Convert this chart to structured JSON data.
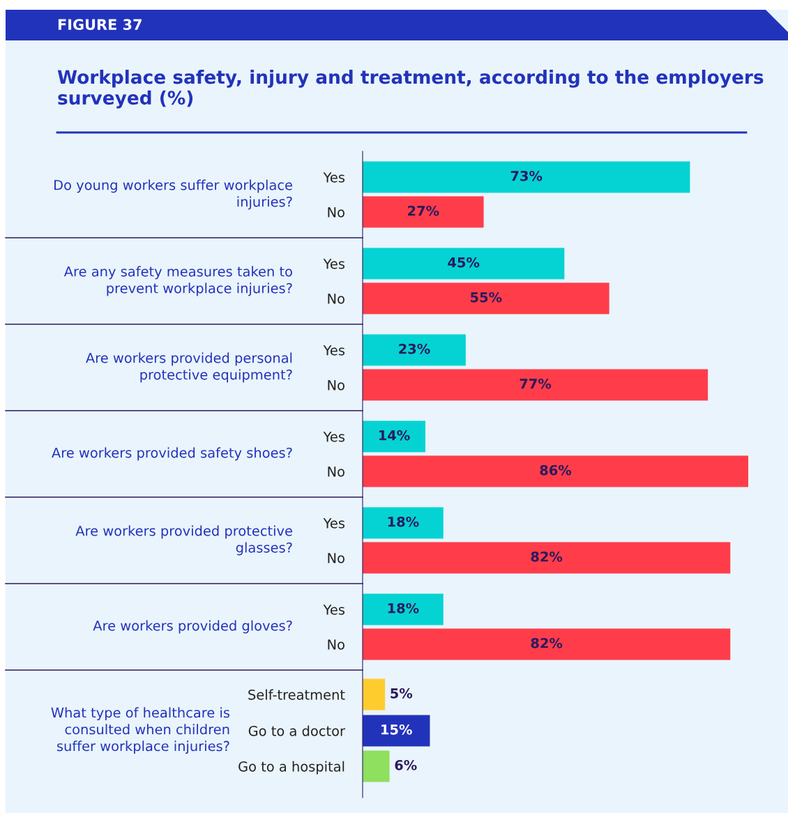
{
  "chart_data": {
    "type": "bar",
    "orientation": "horizontal",
    "subtitle": "FIGURE 37",
    "title": "Workplace safety, injury and treatment, according to the employers surveyed (%)",
    "categories": [
      "Yes",
      "No",
      "Yes",
      "No",
      "Yes",
      "No",
      "Yes",
      "No",
      "Yes",
      "No",
      "Yes",
      "No",
      "Self-treatment",
      "Go to a doctor",
      "Go to a hospital"
    ],
    "values": [
      73,
      27,
      45,
      55,
      23,
      77,
      14,
      86,
      18,
      82,
      18,
      82,
      5,
      15,
      6
    ],
    "value_labels": [
      "73%",
      "27%",
      "45%",
      "55%",
      "23%",
      "77%",
      "14%",
      "86%",
      "18%",
      "82%",
      "18%",
      "82%",
      "5%",
      "15%",
      "6%"
    ],
    "colors": [
      "#05d3d3",
      "#ff3d4a",
      "#05d3d3",
      "#ff3d4a",
      "#05d3d3",
      "#ff3d4a",
      "#05d3d3",
      "#ff3d4a",
      "#05d3d3",
      "#ff3d4a",
      "#05d3d3",
      "#ff3d4a",
      "#ffcc2e",
      "#2233bb",
      "#8ee05e"
    ],
    "annotations": [
      "Do young workers suffer workplace injuries?",
      "Are any safety measures taken to prevent workplace injuries?",
      "Are workers provided personal protective equipment?",
      "Are workers provided safety shoes?",
      "Are workers provided protective glasses?",
      "Are workers provided gloves?",
      "What type of healthcare is consulted when children suffer workplace injuries?"
    ],
    "grid": false
  }
}
